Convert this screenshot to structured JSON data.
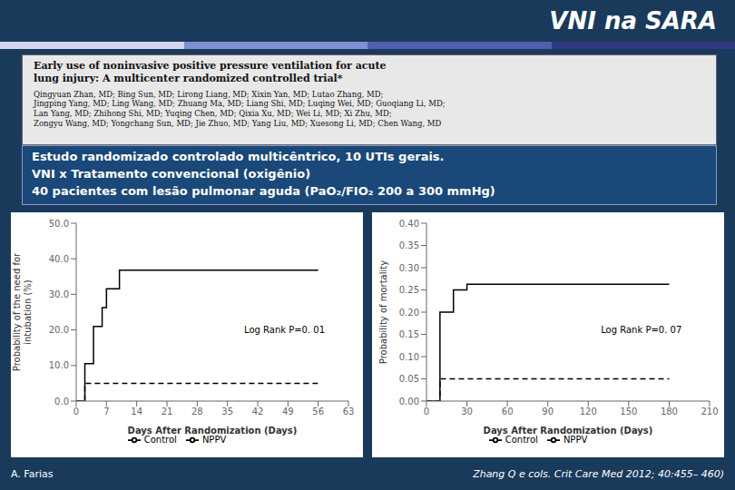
{
  "title": "VNI na SARA",
  "annotations": [
    "Early use of noninvasive positive pressure ventilation for acute\nlung injury: A multicenter randomized controlled trial*",
    "Qingyuan Zhan, MD; Bing Sun, MD; Lirong Liang, MD; Xixin Yan, MD; Lutao Zhang, MD;\nJingping Yang, MD; Ling Wang, MD; Zhuang Ma, MD; Liang Shi, MD; Luqing Wei, MD; Guoqiang Li, MD;\nLan Yang, MD; Zhihong Shi, MD; Yuqing Chen, MD; Qixia Xu, MD; Wei Li, MD; Xi Zhu, MD;\nZongyu Wang, MD; Yongchang Sun, MD; Jie Zhuo, MD; Yang Liu, MD; Xuesong Li, MD; Chen Wang, MD",
    "Estudo randomizado controlado multicêntrico, 10 UTIs gerais.",
    "VNI x Tratamento convencional (oxigênio)",
    "40 pacientes com lesão pulmonar aguda (PaO₂/FIO₂ 200 a 300 mmHg)",
    "A. Farias",
    "Zhang Q e cols. Crit Care Med 2012; 40:455– 460)"
  ],
  "chart_data": [
    {
      "type": "line",
      "xlabel": "Days After Randomization (Days)",
      "ylabel": "Probability of the need for\nintubation (%)",
      "xlim": [
        0,
        63
      ],
      "xticks": [
        0,
        7,
        14,
        21,
        28,
        35,
        42,
        49,
        56,
        63
      ],
      "ylim": [
        0.0,
        50.0
      ],
      "yticks": [
        {
          "value": 0.0,
          "label": "0.0"
        },
        {
          "value": 10.0,
          "label": "10.0"
        },
        {
          "value": 20.0,
          "label": "20.0"
        },
        {
          "value": 30.0,
          "label": "30.0"
        },
        {
          "value": 40.0,
          "label": "40.0"
        },
        {
          "value": 50.0,
          "label": "50.0"
        }
      ],
      "grid": false,
      "legend": "bottom",
      "annotations": [
        "Log Rank P=0. 01"
      ],
      "series": [
        {
          "name": "Control",
          "color": "#000000",
          "line_style": "solid",
          "x": [
            0,
            2,
            2,
            4,
            4,
            6,
            6,
            7,
            7,
            10,
            10,
            17,
            17,
            56
          ],
          "values": [
            0.0,
            0.0,
            10.5,
            10.5,
            21.0,
            21.0,
            26.3,
            26.3,
            31.6,
            31.6,
            36.8,
            36.8,
            36.8,
            36.8
          ]
        },
        {
          "name": "NPPV",
          "color": "#000000",
          "line_style": "dashed",
          "x": [
            0,
            2,
            2,
            56
          ],
          "values": [
            0.0,
            0.0,
            5.0,
            5.0
          ]
        }
      ]
    },
    {
      "type": "line",
      "xlabel": "Days After Randomization (Days)",
      "ylabel": "Probability of mortality",
      "xlim": [
        0,
        210
      ],
      "xticks": [
        0,
        30,
        60,
        90,
        120,
        150,
        180,
        210
      ],
      "ylim": [
        0.0,
        0.4
      ],
      "yticks": [
        {
          "value": 0.0,
          "label": "0.00"
        },
        {
          "value": 0.05,
          "label": "0.05"
        },
        {
          "value": 0.1,
          "label": "0.10"
        },
        {
          "value": 0.15,
          "label": "0.15"
        },
        {
          "value": 0.2,
          "label": "0.20"
        },
        {
          "value": 0.25,
          "label": "0.25"
        },
        {
          "value": 0.3,
          "label": "0.30"
        },
        {
          "value": 0.35,
          "label": "0.35"
        },
        {
          "value": 0.4,
          "label": "0.40"
        }
      ],
      "grid": false,
      "legend": "bottom",
      "annotations": [
        "Log Rank P=0. 07"
      ],
      "series": [
        {
          "name": "Control",
          "color": "#000000",
          "line_style": "solid",
          "x": [
            0,
            10,
            10,
            20,
            20,
            30,
            30,
            180
          ],
          "values": [
            0.0,
            0.0,
            0.2,
            0.2,
            0.25,
            0.25,
            0.263,
            0.263
          ]
        },
        {
          "name": "NPPV",
          "color": "#000000",
          "line_style": "dashed",
          "x": [
            0,
            10,
            10,
            180
          ],
          "values": [
            0.0,
            0.0,
            0.05,
            0.05
          ]
        }
      ]
    }
  ]
}
